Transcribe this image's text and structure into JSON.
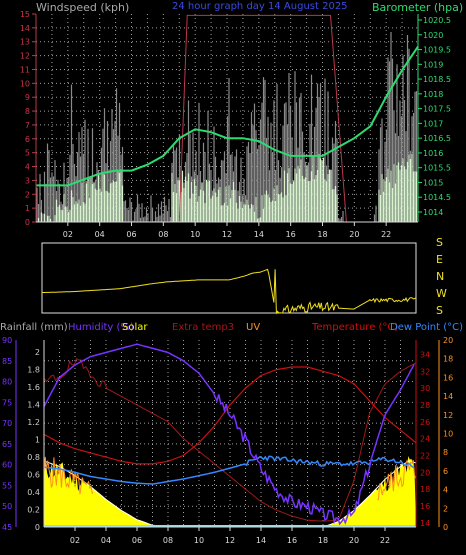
{
  "colors": {
    "bg": "#000000",
    "grid": "#c8c8c8",
    "axis": "#d9d9d9",
    "wind_bar": "#8a8a8a",
    "wind_avg": "#d8f5d0",
    "baro": "#2ddb70",
    "gust": "#b8384a",
    "direction": "#f0e020",
    "rain": "#a0a0a0",
    "humidity": "#7733ff",
    "solar": "#ffff00",
    "solar_max": "#ffffff",
    "extra_temp": "#a01818",
    "uv": "#ff9020",
    "temperature": "#cc1010",
    "dew_point": "#3388ff",
    "title": "#3a4ae0"
  },
  "top_chart": {
    "title": "24 hour graph day   14 August 2025",
    "left_label": "Windspeed (kph)",
    "right_label": "Barometer (hpa)",
    "left_ticks": [
      "0",
      "1",
      "2",
      "3",
      "4",
      "5",
      "6",
      "7",
      "8",
      "9",
      "10",
      "11",
      "12",
      "13",
      "14",
      "15"
    ],
    "right_ticks": [
      "1014",
      "1014.5",
      "1015",
      "1015.5",
      "1016",
      "1016.5",
      "1017",
      "1017.5",
      "1018",
      "1018.5",
      "1019",
      "1019.5",
      "1020",
      "1020.5"
    ],
    "x_ticks": [
      "02",
      "04",
      "06",
      "08",
      "10",
      "12",
      "14",
      "16",
      "18",
      "20",
      "22"
    ]
  },
  "direction_chart": {
    "labels": [
      "S",
      "E",
      "N",
      "W",
      "S"
    ]
  },
  "bottom_chart": {
    "labels": {
      "rainfall": "Rainfall (mm)",
      "humidity": "Humidity (%)",
      "solar": "Solar",
      "extra_temp": "Extra temp3",
      "uv": "UV",
      "temperature": "Temperature (°C)",
      "dew_point": "Dew Point (°C)"
    },
    "humidity_ticks": [
      "45",
      "50",
      "55",
      "60",
      "65",
      "70",
      "75",
      "80",
      "85",
      "90"
    ],
    "rain_ticks": [
      "0",
      "0.2",
      "0.4",
      "0.6",
      "0.8",
      "1",
      "1.2",
      "1.4",
      "1.6",
      "1.8",
      "2"
    ],
    "temp_ticks": [
      "14",
      "16",
      "18",
      "20",
      "22",
      "24",
      "26",
      "28",
      "30",
      "32",
      "34"
    ],
    "uv_ticks": [
      "0",
      "2",
      "4",
      "6",
      "8",
      "10",
      "12",
      "14",
      "16",
      "18",
      "20"
    ],
    "x_ticks": [
      "02",
      "04",
      "06",
      "08",
      "10",
      "12",
      "14",
      "16",
      "18",
      "20",
      "22"
    ]
  },
  "chart_data": [
    {
      "type": "bar",
      "name": "windspeed",
      "ylim": [
        0,
        15
      ],
      "xlim": [
        0,
        24
      ],
      "gust_x": [
        0,
        6,
        9,
        9.5,
        12.5,
        15.5,
        16,
        18.5,
        19.5,
        24
      ],
      "gust_y": [
        0,
        0,
        0,
        14.9,
        14.9,
        14.9,
        14.9,
        14.9,
        0,
        0
      ],
      "avg_x": [
        0,
        2,
        3,
        4,
        8,
        9,
        10,
        12,
        14,
        16,
        18,
        20,
        22,
        24
      ],
      "avg_y": [
        0,
        1,
        2,
        3,
        2,
        3,
        2,
        2,
        1,
        3,
        4,
        0,
        3,
        4
      ]
    },
    {
      "type": "line",
      "name": "barometer",
      "ylim": [
        1014,
        1020.5
      ],
      "x": [
        0,
        1,
        2,
        3,
        4,
        5,
        6,
        7,
        8,
        9,
        10,
        11,
        12,
        13,
        14,
        15,
        16,
        17,
        18,
        19,
        20,
        21,
        22,
        23,
        24
      ],
      "y": [
        1014.9,
        1014.9,
        1014.9,
        1015.1,
        1015.3,
        1015.4,
        1015.4,
        1015.6,
        1015.9,
        1016.5,
        1016.8,
        1016.7,
        1016.5,
        1016.5,
        1016.4,
        1016.1,
        1015.9,
        1015.9,
        1015.9,
        1016.2,
        1016.5,
        1016.9,
        1017.9,
        1018.8,
        1019.6
      ]
    },
    {
      "type": "line",
      "name": "wind_direction",
      "ylim": [
        0,
        360
      ],
      "x": [
        0,
        2,
        4,
        5,
        7,
        8,
        9,
        10,
        12,
        13,
        13.5,
        14,
        14.5,
        15,
        16,
        17,
        18,
        20,
        21,
        24
      ],
      "y": [
        105,
        110,
        120,
        125,
        150,
        160,
        165,
        170,
        170,
        190,
        205,
        210,
        225,
        0,
        20,
        30,
        30,
        20,
        65,
        70
      ]
    },
    {
      "type": "line",
      "name": "humidity",
      "ylim": [
        45,
        90
      ],
      "x": [
        0,
        1,
        2,
        3,
        4,
        5,
        6,
        7,
        8,
        9,
        10,
        11,
        12,
        13,
        14,
        15,
        16,
        17,
        18,
        19,
        20,
        21,
        22,
        23,
        24
      ],
      "y": [
        74,
        81,
        84,
        86,
        87,
        88,
        89,
        88,
        87,
        85,
        82,
        77,
        72,
        66,
        59,
        54,
        51,
        50,
        48,
        47,
        48,
        60,
        72,
        78,
        85
      ]
    },
    {
      "type": "line",
      "name": "temperature",
      "ylim": [
        14,
        35
      ],
      "x": [
        0,
        1,
        2,
        3,
        4,
        5,
        6,
        7,
        8,
        9,
        10,
        11,
        12,
        13,
        14,
        15,
        16,
        17,
        18,
        19,
        20,
        21,
        22,
        23,
        24
      ],
      "y": [
        24.5,
        23.5,
        22.8,
        22.3,
        21.8,
        21.3,
        21.0,
        21.0,
        21.3,
        22.0,
        23.5,
        25.5,
        28.0,
        30.0,
        31.5,
        32.2,
        32.5,
        32.5,
        32.0,
        31.5,
        30.5,
        28.5,
        26.5,
        25.0,
        23.5
      ]
    },
    {
      "type": "line",
      "name": "dew_point",
      "ylim": [
        14,
        35
      ],
      "x": [
        0,
        1,
        2,
        3,
        4,
        5,
        6,
        7,
        8,
        9,
        10,
        11,
        12,
        13,
        14,
        15,
        16,
        17,
        18,
        19,
        20,
        21,
        22,
        23,
        24
      ],
      "y": [
        20.6,
        20.4,
        20.0,
        19.5,
        19.2,
        18.9,
        18.7,
        18.6,
        18.9,
        19.2,
        19.6,
        20.0,
        20.5,
        21.0,
        21.8,
        21.6,
        21.4,
        21.2,
        21.0,
        21.0,
        21.0,
        21.2,
        21.6,
        21.2,
        20.5
      ]
    },
    {
      "type": "line",
      "name": "extra_temp3",
      "ylim": [
        14,
        35
      ],
      "x": [
        0,
        1,
        2,
        3,
        4,
        5,
        6,
        7,
        8,
        9,
        10,
        11,
        12,
        13,
        14,
        15,
        16,
        17,
        18,
        19,
        20,
        21,
        22,
        23,
        24
      ],
      "y": [
        30.5,
        31.5,
        33,
        32,
        30,
        29,
        28,
        27,
        26,
        24,
        22.5,
        21,
        19.5,
        18,
        16.5,
        15.5,
        14.8,
        14.3,
        14.2,
        14.3,
        19,
        27,
        30.5,
        32,
        33
      ]
    },
    {
      "type": "area",
      "name": "solar",
      "ylim": [
        0,
        1
      ],
      "x": [
        0,
        1,
        2,
        3,
        4,
        5,
        6,
        7,
        8,
        18,
        19,
        20,
        21,
        22,
        23,
        23.5,
        24
      ],
      "y": [
        0.36,
        0.33,
        0.28,
        0.22,
        0.15,
        0.09,
        0.04,
        0.01,
        0,
        0,
        0.03,
        0.09,
        0.17,
        0.26,
        0.33,
        0.36,
        0.35
      ]
    }
  ]
}
